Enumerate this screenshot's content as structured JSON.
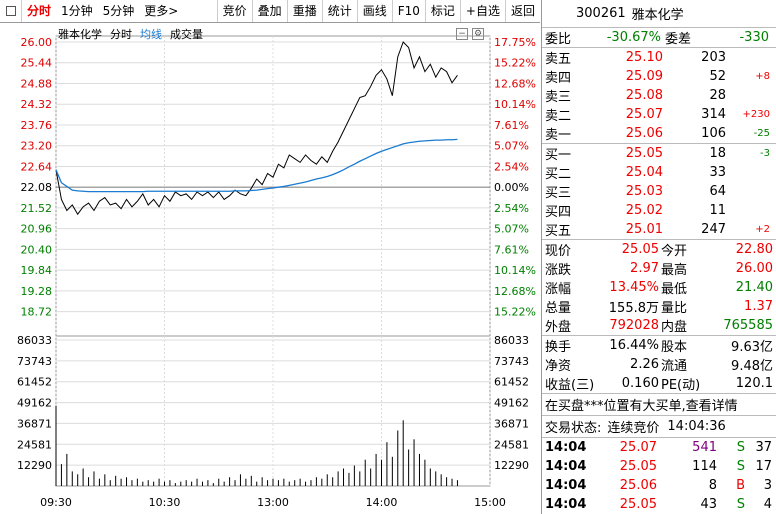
{
  "toolbar": {
    "tabs": [
      {
        "label": "分时",
        "active": true
      },
      {
        "label": "1分钟"
      },
      {
        "label": "5分钟"
      },
      {
        "label": "更多>"
      }
    ],
    "buttons": [
      "竞价",
      "叠加",
      "重播",
      "统计",
      "画线",
      "F10",
      "标记",
      "+自选",
      "返回"
    ]
  },
  "legend": {
    "name": "雅本化学",
    "mode": "分时",
    "avg": "均线",
    "volume": "成交量"
  },
  "chart_data": {
    "type": "line",
    "price_axis_left": [
      "26.00",
      "25.44",
      "24.88",
      "24.32",
      "23.76",
      "23.20",
      "22.64",
      "22.08",
      "21.52",
      "20.96",
      "20.40",
      "19.84",
      "19.28",
      "18.72"
    ],
    "pct_axis_right": [
      "17.75%",
      "15.22%",
      "12.68%",
      "10.14%",
      "7.61%",
      "5.07%",
      "2.54%",
      "0.00%",
      "2.54%",
      "5.07%",
      "7.61%",
      "10.14%",
      "12.68%",
      "15.22%"
    ],
    "volume_axis": [
      "86033",
      "73743",
      "61452",
      "49162",
      "36871",
      "24581",
      "12290"
    ],
    "time_axis": [
      "09:30",
      "10:30",
      "13:00",
      "14:00",
      "15:00"
    ],
    "prev_close": 22.08,
    "ylim": [
      18.44,
      26.0
    ],
    "price_x": [
      0,
      3,
      6,
      9,
      12,
      15,
      18,
      21,
      24,
      27,
      30,
      33,
      36,
      39,
      42,
      45,
      48,
      51,
      54,
      57,
      60,
      63,
      66,
      69,
      72,
      75,
      78,
      81,
      84,
      87,
      90,
      93,
      96,
      99,
      102,
      105,
      108,
      111,
      114,
      117,
      120,
      123,
      126,
      129,
      132,
      135,
      138,
      141,
      144,
      147,
      150,
      153,
      156,
      159,
      162,
      165,
      168,
      171,
      174,
      177,
      180,
      183,
      186,
      189,
      192,
      195,
      198,
      201,
      204,
      207,
      210,
      213,
      216,
      219,
      222
    ],
    "price_y": [
      22.55,
      21.75,
      21.45,
      21.6,
      21.35,
      21.55,
      21.65,
      21.45,
      21.7,
      21.8,
      21.6,
      21.65,
      21.5,
      21.75,
      21.55,
      21.7,
      21.9,
      21.6,
      21.75,
      21.55,
      21.85,
      21.7,
      21.95,
      21.85,
      21.9,
      21.75,
      21.95,
      21.85,
      21.95,
      21.8,
      21.95,
      21.75,
      21.85,
      22.0,
      21.9,
      21.85,
      22.05,
      22.3,
      22.15,
      22.45,
      22.35,
      22.7,
      22.6,
      22.95,
      22.85,
      22.75,
      22.95,
      22.8,
      22.7,
      22.9,
      22.75,
      23.05,
      23.3,
      23.6,
      23.9,
      24.2,
      24.5,
      24.55,
      24.8,
      25.1,
      25.25,
      25.0,
      24.55,
      25.6,
      26.0,
      25.85,
      25.3,
      25.6,
      25.2,
      25.4,
      25.05,
      25.3,
      25.2,
      24.9,
      25.1
    ],
    "avg_y": [
      22.55,
      22.2,
      22.1,
      22.0,
      21.98,
      21.97,
      21.96,
      21.96,
      21.96,
      21.96,
      21.96,
      21.96,
      21.96,
      21.96,
      21.96,
      21.96,
      21.96,
      21.97,
      21.97,
      21.97,
      21.97,
      21.97,
      21.97,
      21.97,
      21.97,
      21.97,
      21.97,
      21.97,
      21.97,
      21.97,
      21.97,
      21.97,
      21.97,
      21.98,
      21.98,
      21.98,
      21.99,
      22.0,
      22.02,
      22.04,
      22.06,
      22.08,
      22.1,
      22.13,
      22.16,
      22.19,
      22.22,
      22.26,
      22.3,
      22.33,
      22.37,
      22.42,
      22.48,
      22.55,
      22.63,
      22.7,
      22.78,
      22.85,
      22.92,
      22.99,
      23.05,
      23.1,
      23.15,
      23.2,
      23.25,
      23.28,
      23.3,
      23.32,
      23.33,
      23.34,
      23.35,
      23.35,
      23.36,
      23.36,
      23.37
    ],
    "volume": [
      0.55,
      0.15,
      0.22,
      0.1,
      0.08,
      0.12,
      0.06,
      0.1,
      0.05,
      0.08,
      0.04,
      0.07,
      0.05,
      0.06,
      0.04,
      0.05,
      0.03,
      0.04,
      0.03,
      0.05,
      0.03,
      0.04,
      0.02,
      0.03,
      0.04,
      0.03,
      0.05,
      0.03,
      0.04,
      0.02,
      0.05,
      0.03,
      0.06,
      0.04,
      0.08,
      0.05,
      0.07,
      0.03,
      0.06,
      0.04,
      0.05,
      0.04,
      0.05,
      0.03,
      0.04,
      0.05,
      0.03,
      0.04,
      0.06,
      0.05,
      0.08,
      0.06,
      0.1,
      0.12,
      0.09,
      0.14,
      0.1,
      0.18,
      0.12,
      0.22,
      0.18,
      0.3,
      0.2,
      0.38,
      0.45,
      0.25,
      0.32,
      0.22,
      0.18,
      0.12,
      0.1,
      0.08,
      0.06,
      0.05,
      0.04
    ],
    "colors": {
      "price": "#000000",
      "avg": "#1a7bd0",
      "grid": "#dcdcdc",
      "axis_red": "#e00000",
      "axis_green": "#008000",
      "volume": "#000000"
    }
  },
  "panel": {
    "code": "300261",
    "name": "雅本化学",
    "webi": {
      "label": "委比",
      "value": "-30.67%",
      "label2": "委差",
      "value2": "-330"
    },
    "asks": [
      {
        "label": "卖五",
        "price": "25.10",
        "vol": "203",
        "chg": ""
      },
      {
        "label": "卖四",
        "price": "25.09",
        "vol": "52",
        "chg": "+8"
      },
      {
        "label": "卖三",
        "price": "25.08",
        "vol": "28",
        "chg": ""
      },
      {
        "label": "卖二",
        "price": "25.07",
        "vol": "314",
        "chg": "+230"
      },
      {
        "label": "卖一",
        "price": "25.06",
        "vol": "106",
        "chg": "-25"
      }
    ],
    "bids": [
      {
        "label": "买一",
        "price": "25.05",
        "vol": "18",
        "chg": "-3"
      },
      {
        "label": "买二",
        "price": "25.04",
        "vol": "33",
        "chg": ""
      },
      {
        "label": "买三",
        "price": "25.03",
        "vol": "64",
        "chg": ""
      },
      {
        "label": "买四",
        "price": "25.02",
        "vol": "11",
        "chg": ""
      },
      {
        "label": "买五",
        "price": "25.01",
        "vol": "247",
        "chg": "+2"
      }
    ],
    "quote": [
      {
        "l1": "现价",
        "v1": "25.05",
        "c1": "red",
        "l2": "今开",
        "v2": "22.80",
        "c2": "red"
      },
      {
        "l1": "涨跌",
        "v1": "2.97",
        "c1": "red",
        "l2": "最高",
        "v2": "26.00",
        "c2": "red"
      },
      {
        "l1": "涨幅",
        "v1": "13.45%",
        "c1": "red",
        "l2": "最低",
        "v2": "21.40",
        "c2": "green"
      },
      {
        "l1": "总量",
        "v1": "155.8万",
        "c1": "",
        "l2": "量比",
        "v2": "1.37",
        "c2": "red"
      },
      {
        "l1": "外盘",
        "v1": "792028",
        "c1": "red",
        "l2": "内盘",
        "v2": "765585",
        "c2": "green"
      }
    ],
    "fund": [
      {
        "l1": "换手",
        "v1": "16.44%",
        "l2": "股本",
        "v2": "9.63亿"
      },
      {
        "l1": "净资",
        "v1": "2.26",
        "l2": "流通",
        "v2": "9.48亿"
      },
      {
        "l1": "收益(三)",
        "v1": "0.160",
        "l2": "PE(动)",
        "v2": "120.1"
      }
    ],
    "notice": "在买盘***位置有大买单,查看详情",
    "status_label": "交易状态:",
    "status_value": "连续竞价",
    "status_time": "14:04:36",
    "trades": [
      {
        "time": "14:04",
        "price": "25.07",
        "vol": "541",
        "dir": "S",
        "n": "37",
        "pc": "red",
        "vc": "purple",
        "dc": "green"
      },
      {
        "time": "14:04",
        "price": "25.05",
        "vol": "114",
        "dir": "S",
        "n": "17",
        "pc": "red",
        "vc": "",
        "dc": "green"
      },
      {
        "time": "14:04",
        "price": "25.06",
        "vol": "8",
        "dir": "B",
        "n": "3",
        "pc": "red",
        "vc": "",
        "dc": "red"
      },
      {
        "time": "14:04",
        "price": "25.05",
        "vol": "43",
        "dir": "S",
        "n": "4",
        "pc": "red",
        "vc": "",
        "dc": "green"
      }
    ]
  }
}
